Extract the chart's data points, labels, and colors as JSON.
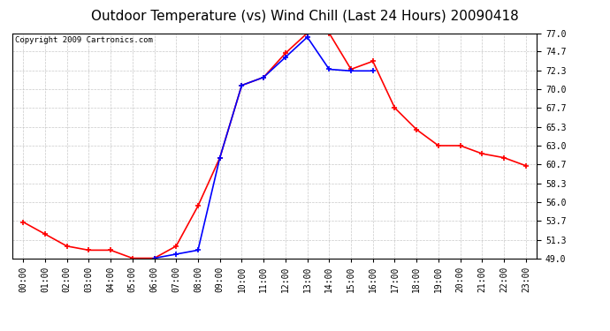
{
  "title": "Outdoor Temperature (vs) Wind Chill (Last 24 Hours) 20090418",
  "copyright": "Copyright 2009 Cartronics.com",
  "hours": [
    "00:00",
    "01:00",
    "02:00",
    "03:00",
    "04:00",
    "05:00",
    "06:00",
    "07:00",
    "08:00",
    "09:00",
    "10:00",
    "11:00",
    "12:00",
    "13:00",
    "14:00",
    "15:00",
    "16:00",
    "17:00",
    "18:00",
    "19:00",
    "20:00",
    "21:00",
    "22:00",
    "23:00"
  ],
  "temp": [
    53.5,
    52.0,
    50.5,
    50.0,
    50.0,
    49.0,
    49.0,
    50.5,
    55.5,
    61.5,
    70.5,
    71.5,
    74.5,
    77.0,
    77.0,
    72.5,
    73.5,
    67.7,
    65.0,
    63.0,
    63.0,
    62.0,
    61.5,
    60.5
  ],
  "wc_x": [
    6,
    7,
    8,
    9,
    10,
    11,
    12,
    13,
    14,
    15,
    16
  ],
  "wc_y": [
    49.0,
    49.5,
    50.0,
    61.5,
    70.5,
    71.5,
    74.0,
    76.5,
    72.5,
    72.3,
    72.3
  ],
  "temp_color": "#ff0000",
  "windchill_color": "#0000ff",
  "bg_color": "#ffffff",
  "grid_color": "#bbbbbb",
  "ylim_min": 49.0,
  "ylim_max": 77.0,
  "yticks": [
    49.0,
    51.3,
    53.7,
    56.0,
    58.3,
    60.7,
    63.0,
    65.3,
    67.7,
    70.0,
    72.3,
    74.7,
    77.0
  ],
  "title_fontsize": 11,
  "tick_fontsize": 7,
  "copyright_fontsize": 6.5,
  "marker": "+"
}
